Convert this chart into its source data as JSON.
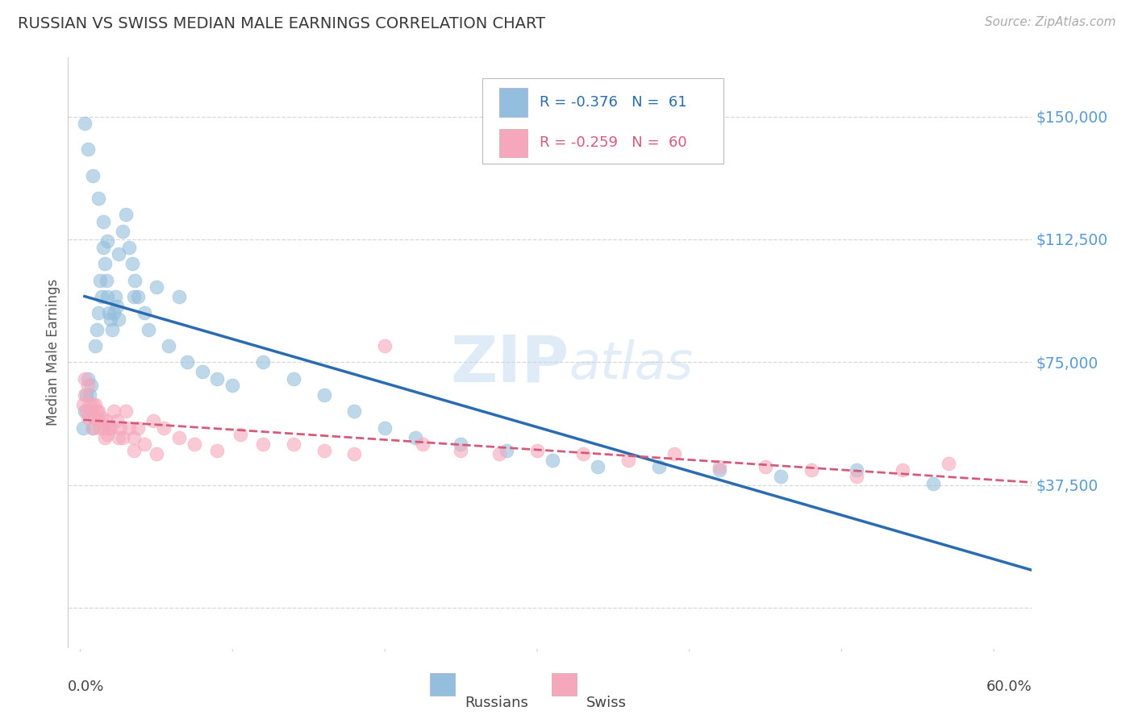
{
  "title": "RUSSIAN VS SWISS MEDIAN MALE EARNINGS CORRELATION CHART",
  "source": "Source: ZipAtlas.com",
  "ylabel": "Median Male Earnings",
  "watermark": "ZIPatlas",
  "blue_scatter": "#94bedd",
  "pink_scatter": "#f5a8bc",
  "blue_line": "#2b6cb0",
  "pink_line": "#d45c7a",
  "grid_color": "#d8d8d8",
  "title_color": "#3a3a3a",
  "right_tick_color": "#5b9bd5",
  "source_color": "#aaaaaa",
  "ytick_vals": [
    0,
    37500,
    75000,
    112500,
    150000
  ],
  "ytick_labels": [
    "",
    "$37,500",
    "$75,000",
    "$112,500",
    "$150,000"
  ],
  "xlim": [
    -0.008,
    0.625
  ],
  "ylim": [
    -12000,
    168000
  ],
  "bg_color": "#ffffff",
  "russians_x": [
    0.002,
    0.003,
    0.004,
    0.005,
    0.006,
    0.007,
    0.008,
    0.01,
    0.011,
    0.012,
    0.013,
    0.014,
    0.015,
    0.016,
    0.017,
    0.018,
    0.019,
    0.02,
    0.021,
    0.022,
    0.023,
    0.024,
    0.025,
    0.028,
    0.03,
    0.032,
    0.034,
    0.036,
    0.038,
    0.042,
    0.05,
    0.058,
    0.065,
    0.07,
    0.08,
    0.09,
    0.1,
    0.12,
    0.14,
    0.16,
    0.18,
    0.2,
    0.22,
    0.25,
    0.28,
    0.31,
    0.34,
    0.38,
    0.42,
    0.46,
    0.51,
    0.56,
    0.003,
    0.005,
    0.008,
    0.012,
    0.015,
    0.018,
    0.025,
    0.035,
    0.045
  ],
  "russians_y": [
    55000,
    60000,
    65000,
    70000,
    65000,
    68000,
    55000,
    80000,
    85000,
    90000,
    100000,
    95000,
    110000,
    105000,
    100000,
    95000,
    90000,
    88000,
    85000,
    90000,
    95000,
    92000,
    88000,
    115000,
    120000,
    110000,
    105000,
    100000,
    95000,
    90000,
    98000,
    80000,
    95000,
    75000,
    72000,
    70000,
    68000,
    75000,
    70000,
    65000,
    60000,
    55000,
    52000,
    50000,
    48000,
    45000,
    43000,
    43000,
    42000,
    40000,
    42000,
    38000,
    148000,
    140000,
    132000,
    125000,
    118000,
    112000,
    108000,
    95000,
    85000
  ],
  "swiss_x": [
    0.002,
    0.003,
    0.004,
    0.005,
    0.006,
    0.007,
    0.008,
    0.009,
    0.01,
    0.011,
    0.012,
    0.013,
    0.014,
    0.015,
    0.016,
    0.017,
    0.018,
    0.019,
    0.02,
    0.022,
    0.024,
    0.026,
    0.028,
    0.03,
    0.032,
    0.035,
    0.038,
    0.042,
    0.048,
    0.055,
    0.065,
    0.075,
    0.09,
    0.105,
    0.12,
    0.14,
    0.16,
    0.18,
    0.2,
    0.225,
    0.25,
    0.275,
    0.3,
    0.33,
    0.36,
    0.39,
    0.42,
    0.45,
    0.48,
    0.51,
    0.54,
    0.57,
    0.003,
    0.005,
    0.008,
    0.012,
    0.018,
    0.025,
    0.035,
    0.05
  ],
  "swiss_y": [
    62000,
    65000,
    60000,
    58000,
    62000,
    60000,
    55000,
    58000,
    62000,
    60000,
    57000,
    55000,
    58000,
    55000,
    52000,
    57000,
    53000,
    55000,
    55000,
    60000,
    57000,
    55000,
    52000,
    60000,
    55000,
    52000,
    55000,
    50000,
    57000,
    55000,
    52000,
    50000,
    48000,
    53000,
    50000,
    50000,
    48000,
    47000,
    80000,
    50000,
    48000,
    47000,
    48000,
    47000,
    45000,
    47000,
    43000,
    43000,
    42000,
    40000,
    42000,
    44000,
    70000,
    68000,
    62000,
    60000,
    55000,
    52000,
    48000,
    47000
  ]
}
